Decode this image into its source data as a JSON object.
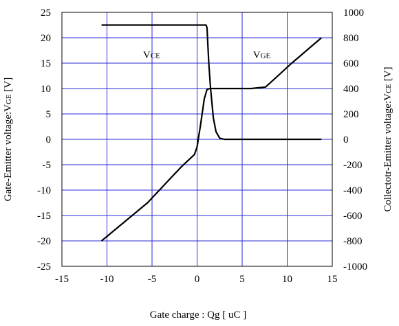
{
  "chart_data": {
    "type": "line",
    "xlabel": "Gate charge : Qg [ uC ]",
    "ylabel_left": {
      "main": "Gate-Emitter voltage:V",
      "sub": "GE",
      "unit": " [V]"
    },
    "ylabel_right": {
      "main": "Collectotr-Emitter voltage:V",
      "sub": "CE",
      "unit": " [V]"
    },
    "xlim": [
      -15,
      15
    ],
    "ylim_left": [
      -25,
      25
    ],
    "ylim_right": [
      -1000,
      1000
    ],
    "xticks": [
      "-15",
      "-10",
      "-5",
      "0",
      "5",
      "10",
      "15"
    ],
    "yticks_left": [
      "25",
      "20",
      "15",
      "10",
      "5",
      "0",
      "-5",
      "-10",
      "-15",
      "-20",
      "-25"
    ],
    "yticks_right": [
      "1000",
      "800",
      "600",
      "400",
      "200",
      "0",
      "-200",
      "-400",
      "-600",
      "-800",
      "-1000"
    ],
    "grid": true,
    "annotations": [
      {
        "main": "V",
        "sub": "CE",
        "x": -6.0,
        "y": 16.0
      },
      {
        "main": "V",
        "sub": "GE",
        "x": 6.2,
        "y": 16.0
      }
    ],
    "series": [
      {
        "axis": "right",
        "x": [
          -10.6,
          1.0,
          1.1,
          1.3,
          1.5,
          1.8,
          2.1,
          2.5,
          3.0,
          5.0,
          10.0,
          13.8
        ],
        "y": [
          900,
          900,
          880,
          600,
          400,
          170,
          60,
          10,
          0,
          0,
          0,
          0
        ]
      },
      {
        "axis": "left",
        "x": [
          -10.6,
          -5.5,
          -1.8,
          -0.3,
          0.0,
          0.4,
          0.8,
          1.1,
          1.4,
          6.0,
          7.6,
          10.5,
          13.8
        ],
        "y": [
          -20.0,
          -12.5,
          -5.5,
          -3.0,
          -1.5,
          3.0,
          8.0,
          9.8,
          10.0,
          10.0,
          10.3,
          15.0,
          20.0
        ]
      }
    ]
  }
}
